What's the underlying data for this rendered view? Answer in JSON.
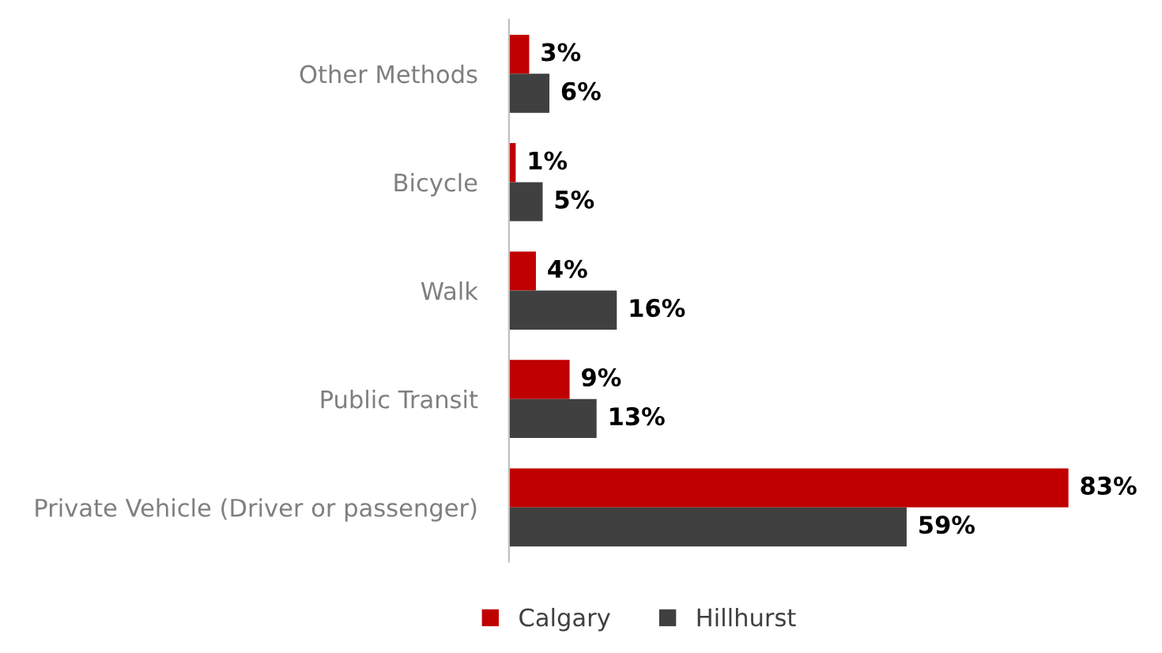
{
  "chart_data": {
    "type": "bar",
    "orientation": "horizontal",
    "categories": [
      "Other Methods",
      "Bicycle",
      "Walk",
      "Public Transit",
      "Private Vehicle (Driver or passenger)"
    ],
    "series": [
      {
        "name": "Calgary",
        "color": "#c00000",
        "values": [
          3,
          1,
          4,
          9,
          83
        ],
        "value_labels": [
          "3%",
          "1%",
          "4%",
          "9%",
          "83%"
        ]
      },
      {
        "name": "Hillhurst",
        "color": "#404040",
        "values": [
          6,
          5,
          16,
          13,
          59
        ],
        "value_labels": [
          "6%",
          "5%",
          "16%",
          "13%",
          "59%"
        ]
      }
    ],
    "legend": "bottom",
    "grid": false
  }
}
